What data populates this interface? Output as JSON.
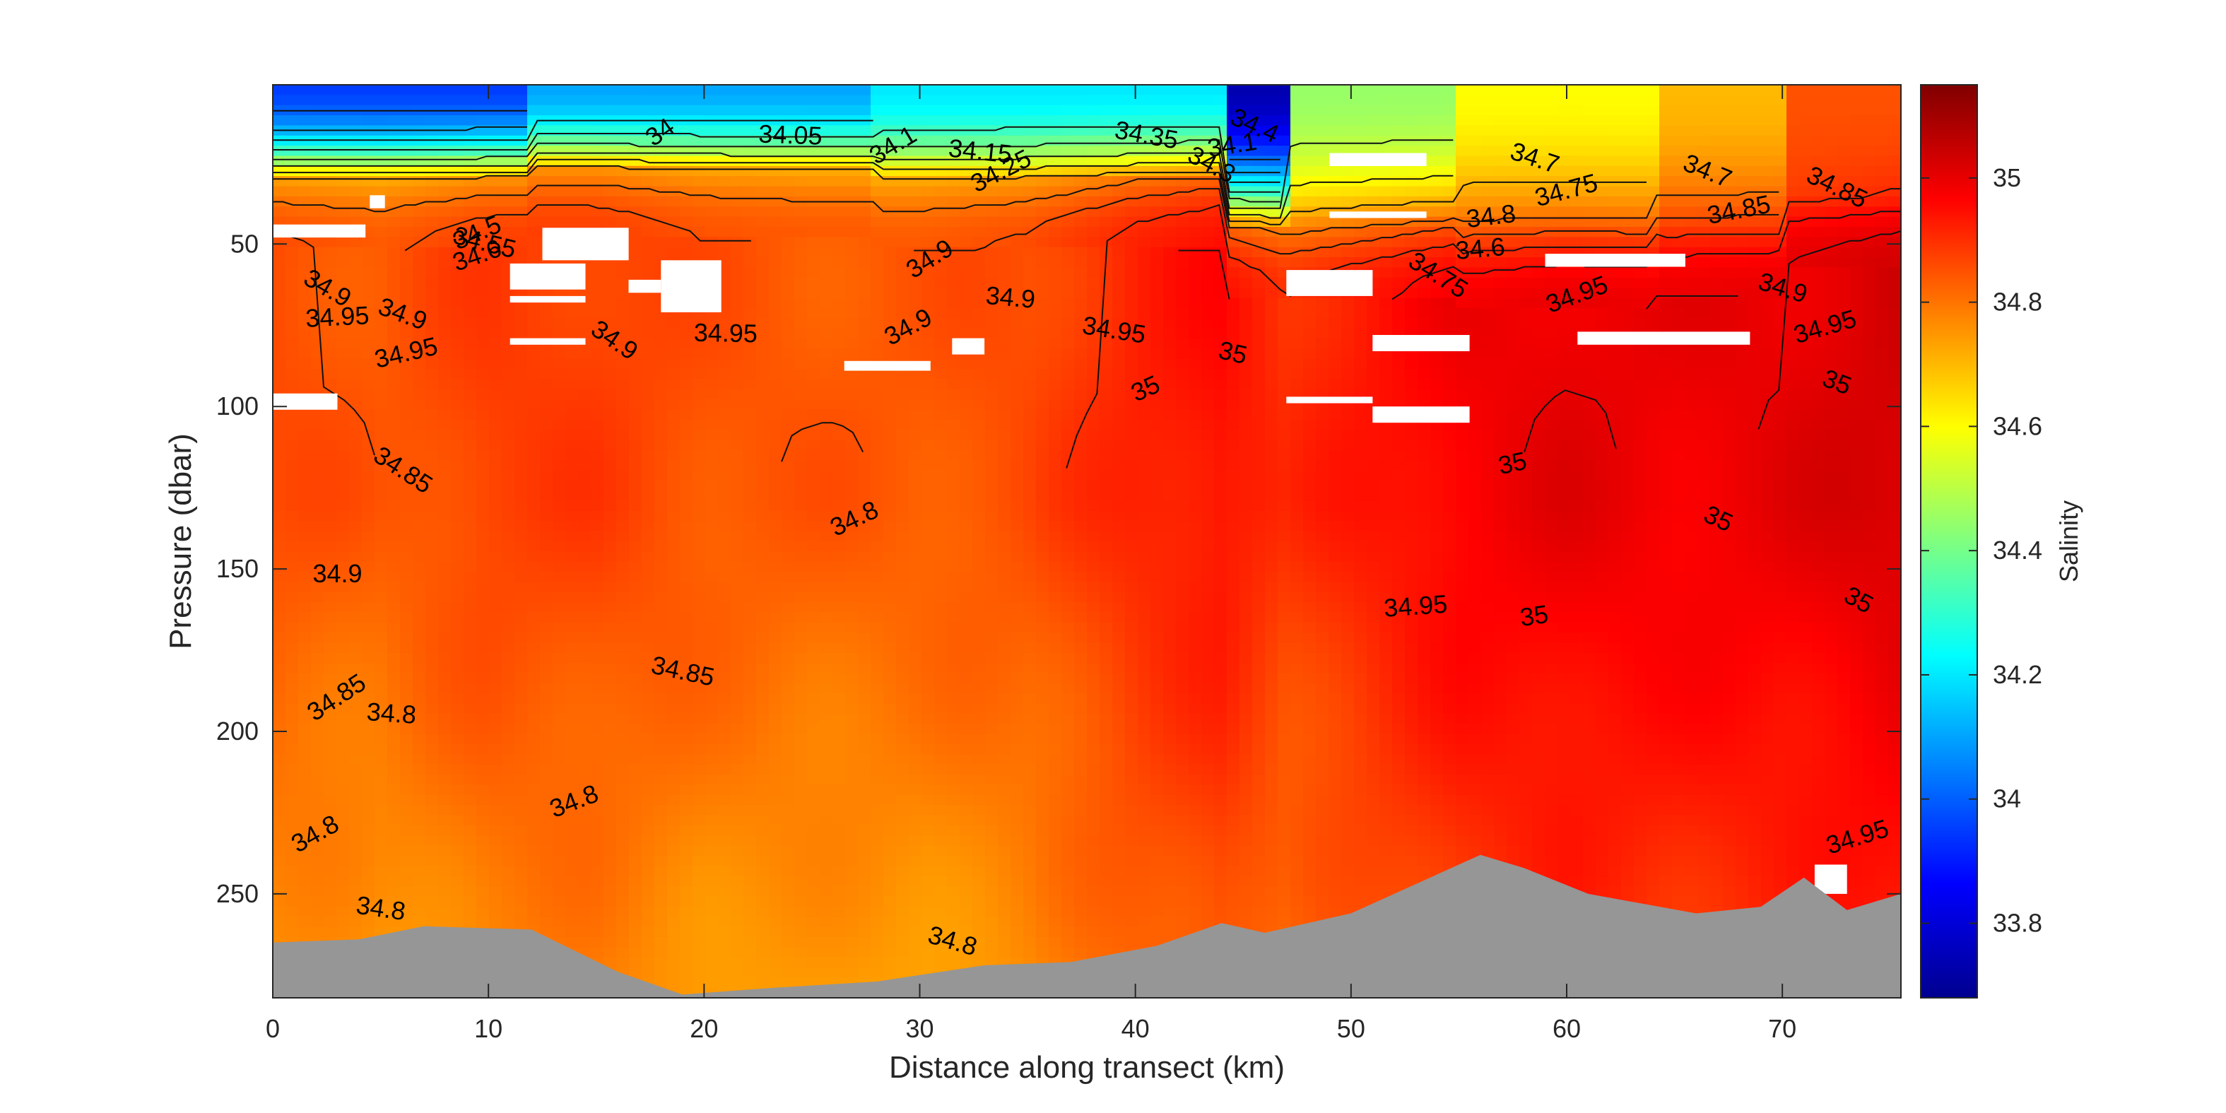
{
  "chart_data": {
    "type": "heatmap",
    "title": "",
    "xlabel": "Distance along transect (km)",
    "ylabel": "Pressure (dbar)",
    "colorbar_label": "Salinity",
    "xlim": [
      0,
      75.5
    ],
    "ylim": [
      282,
      1
    ],
    "y_reversed": true,
    "clim": [
      33.68,
      35.15
    ],
    "colormap": "jet",
    "grid": false,
    "xticks": [
      0,
      10,
      20,
      30,
      40,
      50,
      60,
      70
    ],
    "yticks": [
      50,
      100,
      150,
      200,
      250
    ],
    "cticks": [
      33.8,
      34,
      34.2,
      34.4,
      34.6,
      34.8,
      35
    ],
    "tick_labels": {
      "x": [
        "0",
        "10",
        "20",
        "30",
        "40",
        "50",
        "60",
        "70"
      ],
      "y": [
        "50",
        "100",
        "150",
        "200",
        "250"
      ],
      "c": [
        "33.8",
        "34",
        "34.2",
        "34.4",
        "34.6",
        "34.8",
        "35"
      ]
    },
    "bottom_color": "#969696",
    "bottom_profile": [
      [
        0,
        265
      ],
      [
        4,
        264
      ],
      [
        7,
        260
      ],
      [
        12,
        261
      ],
      [
        16,
        274
      ],
      [
        19,
        281
      ],
      [
        23,
        279
      ],
      [
        28,
        277
      ],
      [
        33,
        272
      ],
      [
        37,
        271
      ],
      [
        41,
        266
      ],
      [
        44,
        259
      ],
      [
        46,
        262
      ],
      [
        50,
        256
      ],
      [
        52,
        250
      ],
      [
        54,
        244
      ],
      [
        56,
        238
      ],
      [
        58,
        242
      ],
      [
        61,
        250
      ],
      [
        66,
        256
      ],
      [
        69,
        254
      ],
      [
        71,
        245
      ],
      [
        73,
        255
      ],
      [
        75.5,
        250
      ]
    ],
    "surface_layer": [
      {
        "x": [
          0,
          12
        ],
        "salinity": 33.95,
        "mixed_layer_depth": 30
      },
      {
        "x": [
          12,
          28
        ],
        "salinity": 34.1,
        "mixed_layer_depth": 27
      },
      {
        "x": [
          28,
          44
        ],
        "salinity": 34.2,
        "mixed_layer_depth": 30
      },
      {
        "x": [
          44,
          47
        ],
        "salinity": 33.75,
        "mixed_layer_depth": 45
      },
      {
        "x": [
          47,
          55
        ],
        "salinity": 34.45,
        "mixed_layer_depth": 45
      },
      {
        "x": [
          55,
          64
        ],
        "salinity": 34.6,
        "mixed_layer_depth": 48
      },
      {
        "x": [
          64,
          70
        ],
        "salinity": 34.7,
        "mixed_layer_depth": 44
      },
      {
        "x": [
          70,
          75.5
        ],
        "salinity": 34.85,
        "mixed_layer_depth": 35
      }
    ],
    "deep_salinity_profile": [
      [
        0,
        34.86
      ],
      [
        5,
        34.84
      ],
      [
        10,
        34.88
      ],
      [
        15,
        34.88
      ],
      [
        20,
        34.85
      ],
      [
        25,
        34.84
      ],
      [
        30,
        34.84
      ],
      [
        35,
        34.86
      ],
      [
        40,
        34.92
      ],
      [
        44,
        34.95
      ],
      [
        47,
        34.9
      ],
      [
        50,
        34.93
      ],
      [
        55,
        34.98
      ],
      [
        60,
        35.0
      ],
      [
        65,
        34.99
      ],
      [
        70,
        35.0
      ],
      [
        75.5,
        35.03
      ]
    ],
    "contour_labels": [
      {
        "text": "34",
        "x": 18,
        "y": 16
      },
      {
        "text": "34.05",
        "x": 24,
        "y": 17
      },
      {
        "text": "34.1",
        "x": 28.8,
        "y": 20
      },
      {
        "text": "34.15",
        "x": 32.8,
        "y": 22
      },
      {
        "text": "34.25",
        "x": 33.8,
        "y": 28
      },
      {
        "text": "34.35",
        "x": 40.5,
        "y": 17
      },
      {
        "text": "34.5",
        "x": 9.5,
        "y": 47
      },
      {
        "text": "34.55",
        "x": 9.8,
        "y": 50
      },
      {
        "text": "34.6",
        "x": 9.5,
        "y": 54
      },
      {
        "text": "34.7",
        "x": 58.5,
        "y": 24
      },
      {
        "text": "34.75",
        "x": 60,
        "y": 34
      },
      {
        "text": "34.7",
        "x": 66.5,
        "y": 28
      },
      {
        "text": "34.85",
        "x": 68,
        "y": 40
      },
      {
        "text": "34.85",
        "x": 72.5,
        "y": 33
      },
      {
        "text": "34.8",
        "x": 56.5,
        "y": 42
      },
      {
        "text": "34.9",
        "x": 2.5,
        "y": 64
      },
      {
        "text": "34.95",
        "x": 3,
        "y": 73
      },
      {
        "text": "34.9",
        "x": 15.8,
        "y": 80
      },
      {
        "text": "34.95",
        "x": 21,
        "y": 78
      },
      {
        "text": "34.9",
        "x": 30.5,
        "y": 55
      },
      {
        "text": "34.9",
        "x": 34.2,
        "y": 67
      },
      {
        "text": "34.9",
        "x": 29.5,
        "y": 76
      },
      {
        "text": "34.95",
        "x": 39,
        "y": 77
      },
      {
        "text": "35",
        "x": 40.5,
        "y": 95
      },
      {
        "text": "35",
        "x": 44.5,
        "y": 84
      },
      {
        "text": "34.95",
        "x": 60.5,
        "y": 66
      },
      {
        "text": "34.9",
        "x": 70,
        "y": 64
      },
      {
        "text": "34.95",
        "x": 72,
        "y": 76
      },
      {
        "text": "35",
        "x": 72.5,
        "y": 93
      },
      {
        "text": "35",
        "x": 57.5,
        "y": 118
      },
      {
        "text": "35",
        "x": 67,
        "y": 135
      },
      {
        "text": "35",
        "x": 58.5,
        "y": 165
      },
      {
        "text": "35",
        "x": 73.5,
        "y": 160
      },
      {
        "text": "34.95",
        "x": 53,
        "y": 162
      },
      {
        "text": "34.85",
        "x": 6,
        "y": 120
      },
      {
        "text": "34.9",
        "x": 3,
        "y": 152
      },
      {
        "text": "34.85",
        "x": 3,
        "y": 190
      },
      {
        "text": "34.8",
        "x": 5.5,
        "y": 195
      },
      {
        "text": "34.8",
        "x": 2,
        "y": 232
      },
      {
        "text": "34.8",
        "x": 5,
        "y": 255
      },
      {
        "text": "34.8",
        "x": 27,
        "y": 135
      },
      {
        "text": "34.85",
        "x": 19,
        "y": 182
      },
      {
        "text": "34.8",
        "x": 14,
        "y": 222
      },
      {
        "text": "34.8",
        "x": 31.5,
        "y": 265
      },
      {
        "text": "34.95",
        "x": 73.5,
        "y": 233
      },
      {
        "text": "34.9",
        "x": 6,
        "y": 72
      },
      {
        "text": "34.95",
        "x": 6.2,
        "y": 84
      },
      {
        "text": "34.4",
        "x": 45.5,
        "y": 14
      },
      {
        "text": "34.1",
        "x": 44.5,
        "y": 20
      },
      {
        "text": "34.3",
        "x": 43.5,
        "y": 26
      },
      {
        "text": "34.6",
        "x": 56,
        "y": 52
      },
      {
        "text": "34.75",
        "x": 54,
        "y": 60
      }
    ],
    "missing_data": [
      [
        0,
        4.3,
        44,
        48
      ],
      [
        0,
        3,
        96,
        101
      ],
      [
        4.5,
        5.2,
        35,
        39
      ],
      [
        11,
        14.5,
        56,
        64
      ],
      [
        12.5,
        16.5,
        45,
        55
      ],
      [
        11,
        14.5,
        66,
        68
      ],
      [
        11,
        14.5,
        79,
        81
      ],
      [
        16.5,
        18,
        61,
        65
      ],
      [
        18,
        20.8,
        55,
        71
      ],
      [
        26.5,
        30.5,
        86,
        89
      ],
      [
        31.5,
        33,
        79,
        84
      ],
      [
        49,
        53.5,
        22,
        26
      ],
      [
        49,
        53.5,
        40,
        42
      ],
      [
        47,
        51,
        58,
        66
      ],
      [
        51,
        55.5,
        78,
        83
      ],
      [
        47,
        51,
        97,
        99
      ],
      [
        51,
        55.5,
        100,
        105
      ],
      [
        59,
        65.5,
        53,
        57
      ],
      [
        60.5,
        68.5,
        77,
        81
      ],
      [
        71.5,
        73,
        241,
        250
      ]
    ]
  }
}
